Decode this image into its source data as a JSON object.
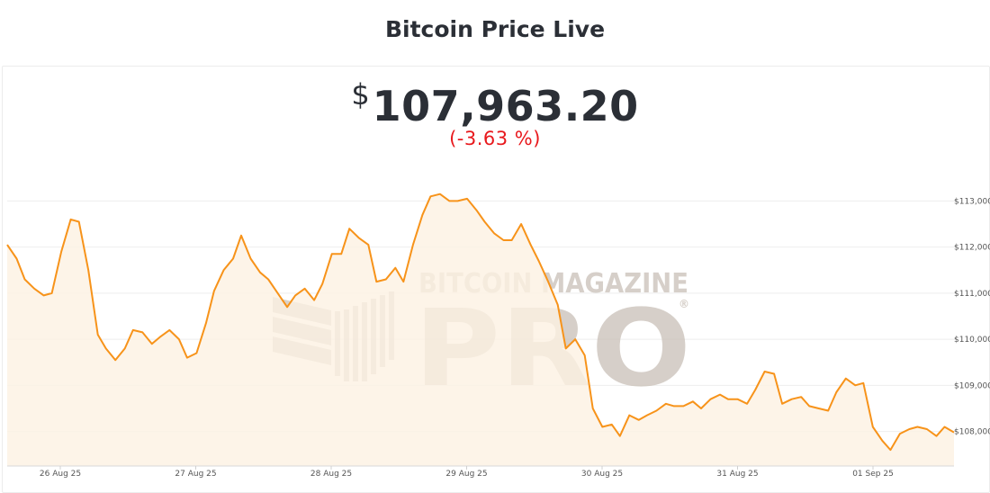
{
  "title": "Bitcoin Price Live",
  "price": {
    "currency": "$",
    "value": "107,963.20",
    "change": "(-3.63 %)"
  },
  "watermark": {
    "line1": "BITCOIN MAGAZINE",
    "line2": "PRO",
    "mark": "®"
  },
  "colors": {
    "line": "#f7931a",
    "area": "#fdf1e2",
    "negative": "#e8191d"
  },
  "chart_data": {
    "type": "area",
    "grid": "horizontal",
    "y_axis_position": "right",
    "xlabel": "",
    "ylabel": "",
    "ylim": [
      107250,
      113750
    ],
    "x_ticks": [
      "26 Aug 25",
      "27 Aug 25",
      "28 Aug 25",
      "29 Aug 25",
      "30 Aug 25",
      "31 Aug 25",
      "01 Sep 25"
    ],
    "y_ticks": [
      108000,
      109000,
      110000,
      111000,
      112000,
      113000
    ],
    "y_tick_labels": [
      "$108,000",
      "$109,000",
      "$110,000",
      "$111,000",
      "$112,000",
      "$113,000"
    ],
    "series": [
      {
        "x": [
          0.0,
          0.07,
          0.13,
          0.2,
          0.27,
          0.33,
          0.4,
          0.47,
          0.53,
          0.6,
          0.67,
          0.73,
          0.8,
          0.87,
          0.93,
          1.0,
          1.07,
          1.13,
          1.2,
          1.27,
          1.33,
          1.4,
          1.47,
          1.53,
          1.6,
          1.67,
          1.73,
          1.8,
          1.87,
          1.93,
          2.0,
          2.07,
          2.13,
          2.2,
          2.27,
          2.33,
          2.4,
          2.47,
          2.53,
          2.6,
          2.67,
          2.73,
          2.8,
          2.87,
          2.93,
          3.0,
          3.07,
          3.13,
          3.2,
          3.27,
          3.33,
          3.4,
          3.47,
          3.53,
          3.6,
          3.67,
          3.73,
          3.8,
          3.87,
          3.93,
          4.0,
          4.07,
          4.13,
          4.2,
          4.27,
          4.33,
          4.4,
          4.47,
          4.53,
          4.6,
          4.67,
          4.73,
          4.8,
          4.87,
          4.93,
          5.0,
          5.07,
          5.13,
          5.2,
          5.27,
          5.33,
          5.4,
          5.47,
          5.53,
          5.6,
          5.67,
          5.73,
          5.8,
          5.87,
          5.93,
          6.0,
          6.07,
          6.13,
          6.2,
          6.27,
          6.33,
          6.4,
          6.47,
          6.53,
          6.6,
          6.67,
          6.73,
          6.8,
          6.87,
          6.93,
          7.0
        ],
        "values": [
          112050,
          111750,
          111300,
          111100,
          110950,
          111000,
          111900,
          112600,
          112550,
          111500,
          110100,
          109800,
          109550,
          109800,
          110200,
          110150,
          109900,
          110050,
          110200,
          110000,
          109600,
          109700,
          110350,
          111050,
          111500,
          111750,
          112250,
          111750,
          111450,
          111300,
          111000,
          110700,
          110950,
          111100,
          110850,
          111200,
          111850,
          111850,
          112400,
          112200,
          112050,
          111250,
          111300,
          111550,
          111250,
          112050,
          112700,
          113100,
          113150,
          113000,
          113000,
          113050,
          112800,
          112550,
          112300,
          112150,
          112150,
          112500,
          112050,
          111700,
          111250,
          110750,
          109800,
          110000,
          109650,
          108500,
          108100,
          108150,
          107900,
          108350,
          108250,
          108350,
          108450,
          108600,
          108550,
          108550,
          108650,
          108500,
          108700,
          108800,
          108700,
          108700,
          108600,
          108900,
          109300,
          109250,
          108600,
          108700,
          108750,
          108550,
          108500,
          108450,
          108850,
          109150,
          109000,
          109050,
          108100,
          107800,
          107600,
          107950,
          108050,
          108100,
          108050,
          107900,
          108100,
          107980
        ]
      }
    ]
  }
}
